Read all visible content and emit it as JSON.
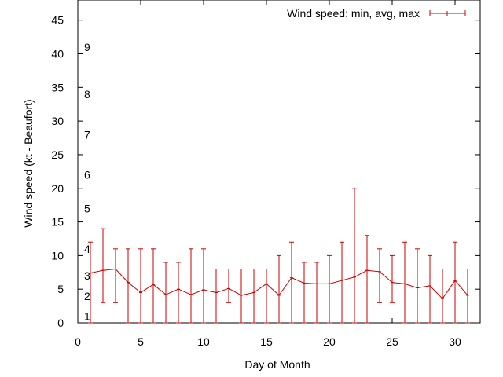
{
  "chart_data": {
    "type": "line",
    "title": "",
    "xlabel": "Day of Month",
    "ylabel": "Wind speed (kt - Beaufort)",
    "xlim": [
      0,
      32
    ],
    "ylim": [
      0,
      48
    ],
    "x_ticks": [
      0,
      5,
      10,
      15,
      20,
      25,
      30
    ],
    "y_ticks": [
      0,
      5,
      10,
      15,
      20,
      25,
      30,
      35,
      40,
      45
    ],
    "grid": false,
    "legend_position": "top-right",
    "series_color": "#cc0000",
    "beaufort_labels": [
      {
        "label": "1",
        "value": 1
      },
      {
        "label": "2",
        "value": 4
      },
      {
        "label": "3",
        "value": 7
      },
      {
        "label": "4",
        "value": 11
      },
      {
        "label": "5",
        "value": 17
      },
      {
        "label": "6",
        "value": 22
      },
      {
        "label": "7",
        "value": 28
      },
      {
        "label": "8",
        "value": 34
      },
      {
        "label": "9",
        "value": 41
      }
    ],
    "series": [
      {
        "name": "Wind speed: min, avg, max",
        "x": [
          1,
          2,
          3,
          4,
          5,
          6,
          7,
          8,
          9,
          10,
          11,
          12,
          13,
          14,
          15,
          16,
          17,
          18,
          19,
          20,
          21,
          22,
          23,
          24,
          25,
          26,
          27,
          28,
          29,
          30,
          31
        ],
        "avg": [
          7.4,
          7.8,
          8.0,
          6.0,
          4.5,
          5.7,
          4.2,
          5.0,
          4.2,
          4.9,
          4.5,
          5.1,
          4.1,
          4.5,
          5.8,
          4.1,
          6.7,
          5.9,
          5.8,
          5.8,
          6.3,
          6.8,
          7.8,
          7.6,
          6.0,
          5.8,
          5.2,
          5.5,
          3.6,
          6.3,
          4.1
        ],
        "min": [
          0,
          3,
          3,
          0,
          0,
          0,
          0,
          0,
          0,
          0,
          0,
          3,
          0,
          0,
          0,
          0,
          0,
          0,
          0,
          0,
          0,
          0,
          0,
          3,
          3,
          0,
          0,
          0,
          0,
          0,
          0
        ],
        "max": [
          12,
          14,
          11,
          11,
          11,
          11,
          9,
          9,
          11,
          11,
          8,
          8,
          8,
          8,
          8,
          10,
          12,
          9,
          9,
          10,
          12,
          20,
          13,
          11,
          10,
          12,
          11,
          10,
          8,
          12,
          8
        ]
      }
    ]
  }
}
